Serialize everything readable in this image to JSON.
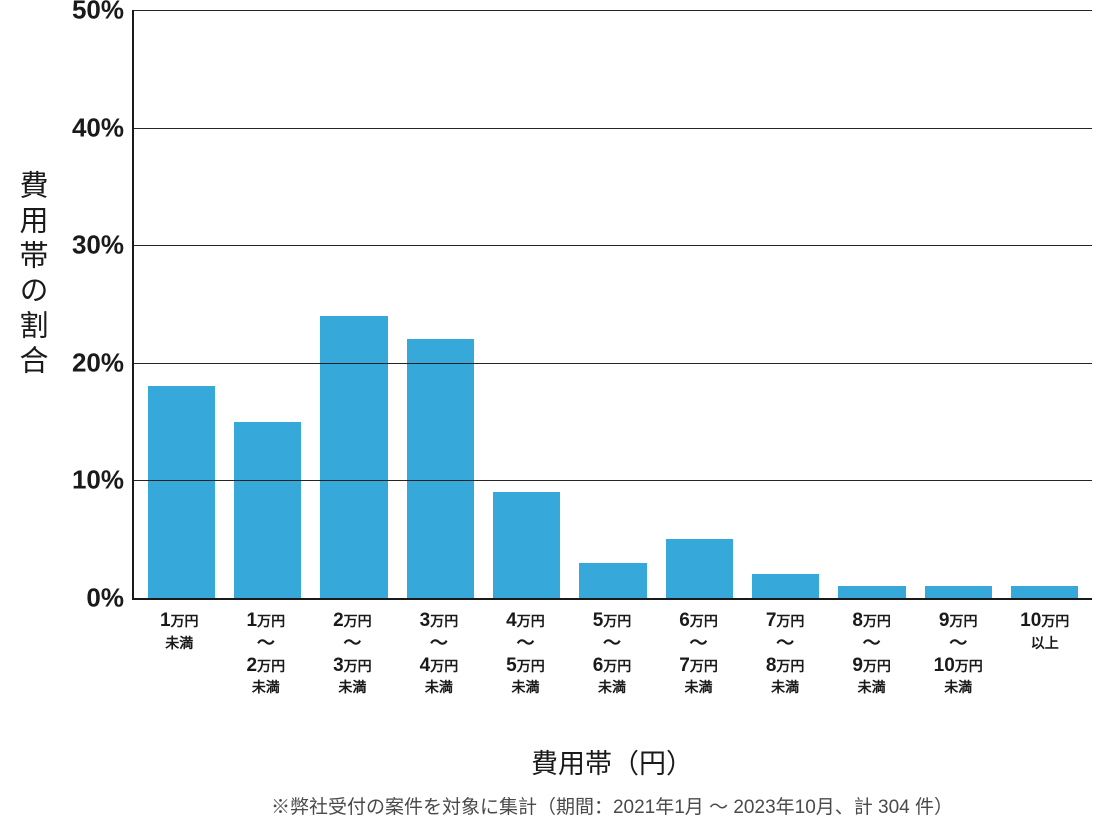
{
  "chart": {
    "type": "bar",
    "background_color": "#ffffff",
    "bar_color": "#36a8da",
    "axis_color": "#1a1a1a",
    "grid_color": "#1a1a1a",
    "text_color": "#1a1a1a",
    "footnote_color": "#4a4a4a",
    "ylim": [
      0,
      50
    ],
    "ytick_step": 10,
    "yticks": [
      "0%",
      "10%",
      "20%",
      "30%",
      "40%",
      "50%"
    ],
    "ytick_fontsize": 26,
    "bar_width_ratio": 0.78,
    "values": [
      18,
      15,
      24,
      22,
      9,
      3,
      5,
      2,
      1,
      1,
      1
    ],
    "categories": [
      {
        "top_num": "1",
        "top_unit": "万円",
        "sub": "未満",
        "range_num": null,
        "range_unit": null,
        "range_sub": null
      },
      {
        "top_num": "1",
        "top_unit": "万円",
        "sub": null,
        "range_num": "2",
        "range_unit": "万円",
        "range_sub": "未満"
      },
      {
        "top_num": "2",
        "top_unit": "万円",
        "sub": null,
        "range_num": "3",
        "range_unit": "万円",
        "range_sub": "未満"
      },
      {
        "top_num": "3",
        "top_unit": "万円",
        "sub": null,
        "range_num": "4",
        "range_unit": "万円",
        "range_sub": "未満"
      },
      {
        "top_num": "4",
        "top_unit": "万円",
        "sub": null,
        "range_num": "5",
        "range_unit": "万円",
        "range_sub": "未満"
      },
      {
        "top_num": "5",
        "top_unit": "万円",
        "sub": null,
        "range_num": "6",
        "range_unit": "万円",
        "range_sub": "未満"
      },
      {
        "top_num": "6",
        "top_unit": "万円",
        "sub": null,
        "range_num": "7",
        "range_unit": "万円",
        "range_sub": "未満"
      },
      {
        "top_num": "7",
        "top_unit": "万円",
        "sub": null,
        "range_num": "8",
        "range_unit": "万円",
        "range_sub": "未満"
      },
      {
        "top_num": "8",
        "top_unit": "万円",
        "sub": null,
        "range_num": "9",
        "range_unit": "万円",
        "range_sub": "未満"
      },
      {
        "top_num": "9",
        "top_unit": "万円",
        "sub": null,
        "range_num": "10",
        "range_unit": "万円",
        "range_sub": "未満"
      },
      {
        "top_num": "10",
        "top_unit": "万円",
        "sub": "以上",
        "range_num": null,
        "range_unit": null,
        "range_sub": null
      }
    ],
    "yaxis_title": "費用帯の割合",
    "yaxis_title_fontsize": 29,
    "xaxis_title": "費用帯（円）",
    "xaxis_title_fontsize": 27,
    "footnote": "※弊社受付の案件を対象に集計（期間：2021年1月 ～ 2023年10月、計 304 件）",
    "footnote_fontsize": 19,
    "xlabel_fontsize_num": 19,
    "xlabel_fontsize_unit": 14,
    "xlabel_fontsize_sub": 14
  }
}
